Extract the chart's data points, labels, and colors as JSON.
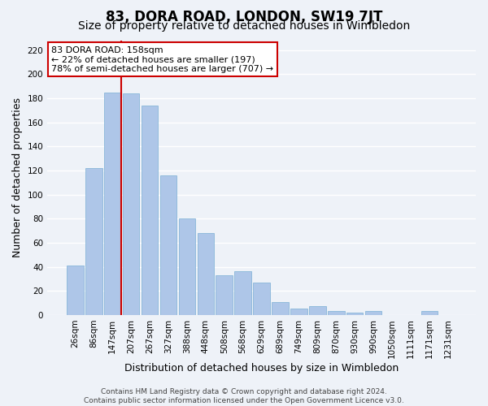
{
  "title": "83, DORA ROAD, LONDON, SW19 7JT",
  "subtitle": "Size of property relative to detached houses in Wimbledon",
  "xlabel": "Distribution of detached houses by size in Wimbledon",
  "ylabel": "Number of detached properties",
  "categories": [
    "26sqm",
    "86sqm",
    "147sqm",
    "207sqm",
    "267sqm",
    "327sqm",
    "388sqm",
    "448sqm",
    "508sqm",
    "568sqm",
    "629sqm",
    "689sqm",
    "749sqm",
    "809sqm",
    "870sqm",
    "930sqm",
    "990sqm",
    "1050sqm",
    "1111sqm",
    "1171sqm",
    "1231sqm"
  ],
  "values": [
    41,
    122,
    185,
    184,
    174,
    116,
    80,
    68,
    33,
    36,
    27,
    11,
    5,
    7,
    3,
    2,
    3,
    0,
    0,
    3,
    0
  ],
  "bar_color": "#aec6e8",
  "bar_edge_color": "#7bafd4",
  "vline_x_index": 2,
  "vline_color": "#cc0000",
  "ylim": [
    0,
    228
  ],
  "yticks": [
    0,
    20,
    40,
    60,
    80,
    100,
    120,
    140,
    160,
    180,
    200,
    220
  ],
  "annotation_title": "83 DORA ROAD: 158sqm",
  "annotation_line1": "← 22% of detached houses are smaller (197)",
  "annotation_line2": "78% of semi-detached houses are larger (707) →",
  "annotation_box_color": "#ffffff",
  "annotation_box_edge": "#cc0000",
  "footer1": "Contains HM Land Registry data © Crown copyright and database right 2024.",
  "footer2": "Contains public sector information licensed under the Open Government Licence v3.0.",
  "background_color": "#eef2f8",
  "grid_color": "#ffffff",
  "title_fontsize": 12,
  "subtitle_fontsize": 10,
  "axis_label_fontsize": 9,
  "tick_fontsize": 7.5,
  "footer_fontsize": 6.5
}
